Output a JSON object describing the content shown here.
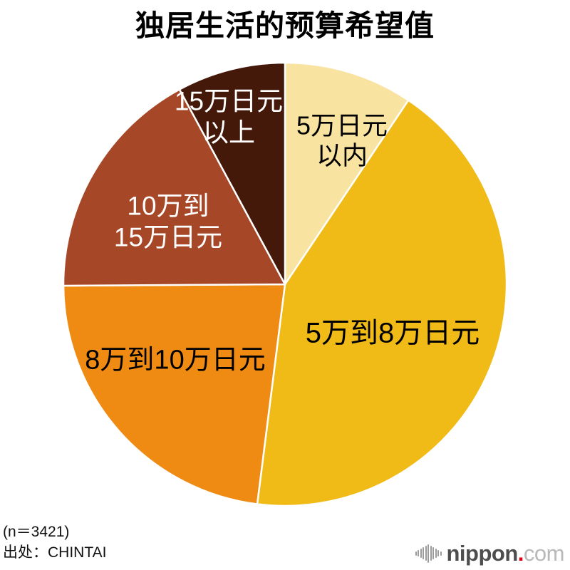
{
  "title": "独居生活的预算希望值",
  "footer": {
    "sample_size": "(n＝3421)",
    "source": "出处：CHINTAI"
  },
  "logo": {
    "name": "nippon",
    "dot": ".",
    "tld": "com",
    "name_color": "#4d4d4d",
    "tld_color": "#b9b9b9",
    "dot_color": "#e60012",
    "bars_color": "#9b9b9b"
  },
  "chart_data": {
    "type": "pie",
    "title": "独居生活的预算希望值",
    "unit": "percent",
    "start_angle_deg": 0,
    "direction": "clockwise",
    "legend_position": "none",
    "percent_labels_visible": false,
    "labels_position": "inside",
    "slices": [
      {
        "label": "5万日元以内",
        "label_lines": [
          "5万日元",
          "以内"
        ],
        "value": 9.4,
        "color": "#F8E3A0",
        "text_color": "#000000"
      },
      {
        "label": "5万到8万日元",
        "label_lines": [
          "5万到8万日元"
        ],
        "value": 42.6,
        "color": "#F0BB16",
        "text_color": "#000000"
      },
      {
        "label": "8万到10万日元",
        "label_lines": [
          "8万到10万日元"
        ],
        "value": 22.9,
        "color": "#EF8B13",
        "text_color": "#000000"
      },
      {
        "label": "10万到15万日元",
        "label_lines": [
          "10万到",
          "15万日元"
        ],
        "value": 17.2,
        "color": "#A64727",
        "text_color": "#ffffff"
      },
      {
        "label": "15万日元以上",
        "label_lines": [
          "15万日元",
          "以上"
        ],
        "value": 7.9,
        "color": "#45190A",
        "text_color": "#ffffff"
      }
    ]
  }
}
